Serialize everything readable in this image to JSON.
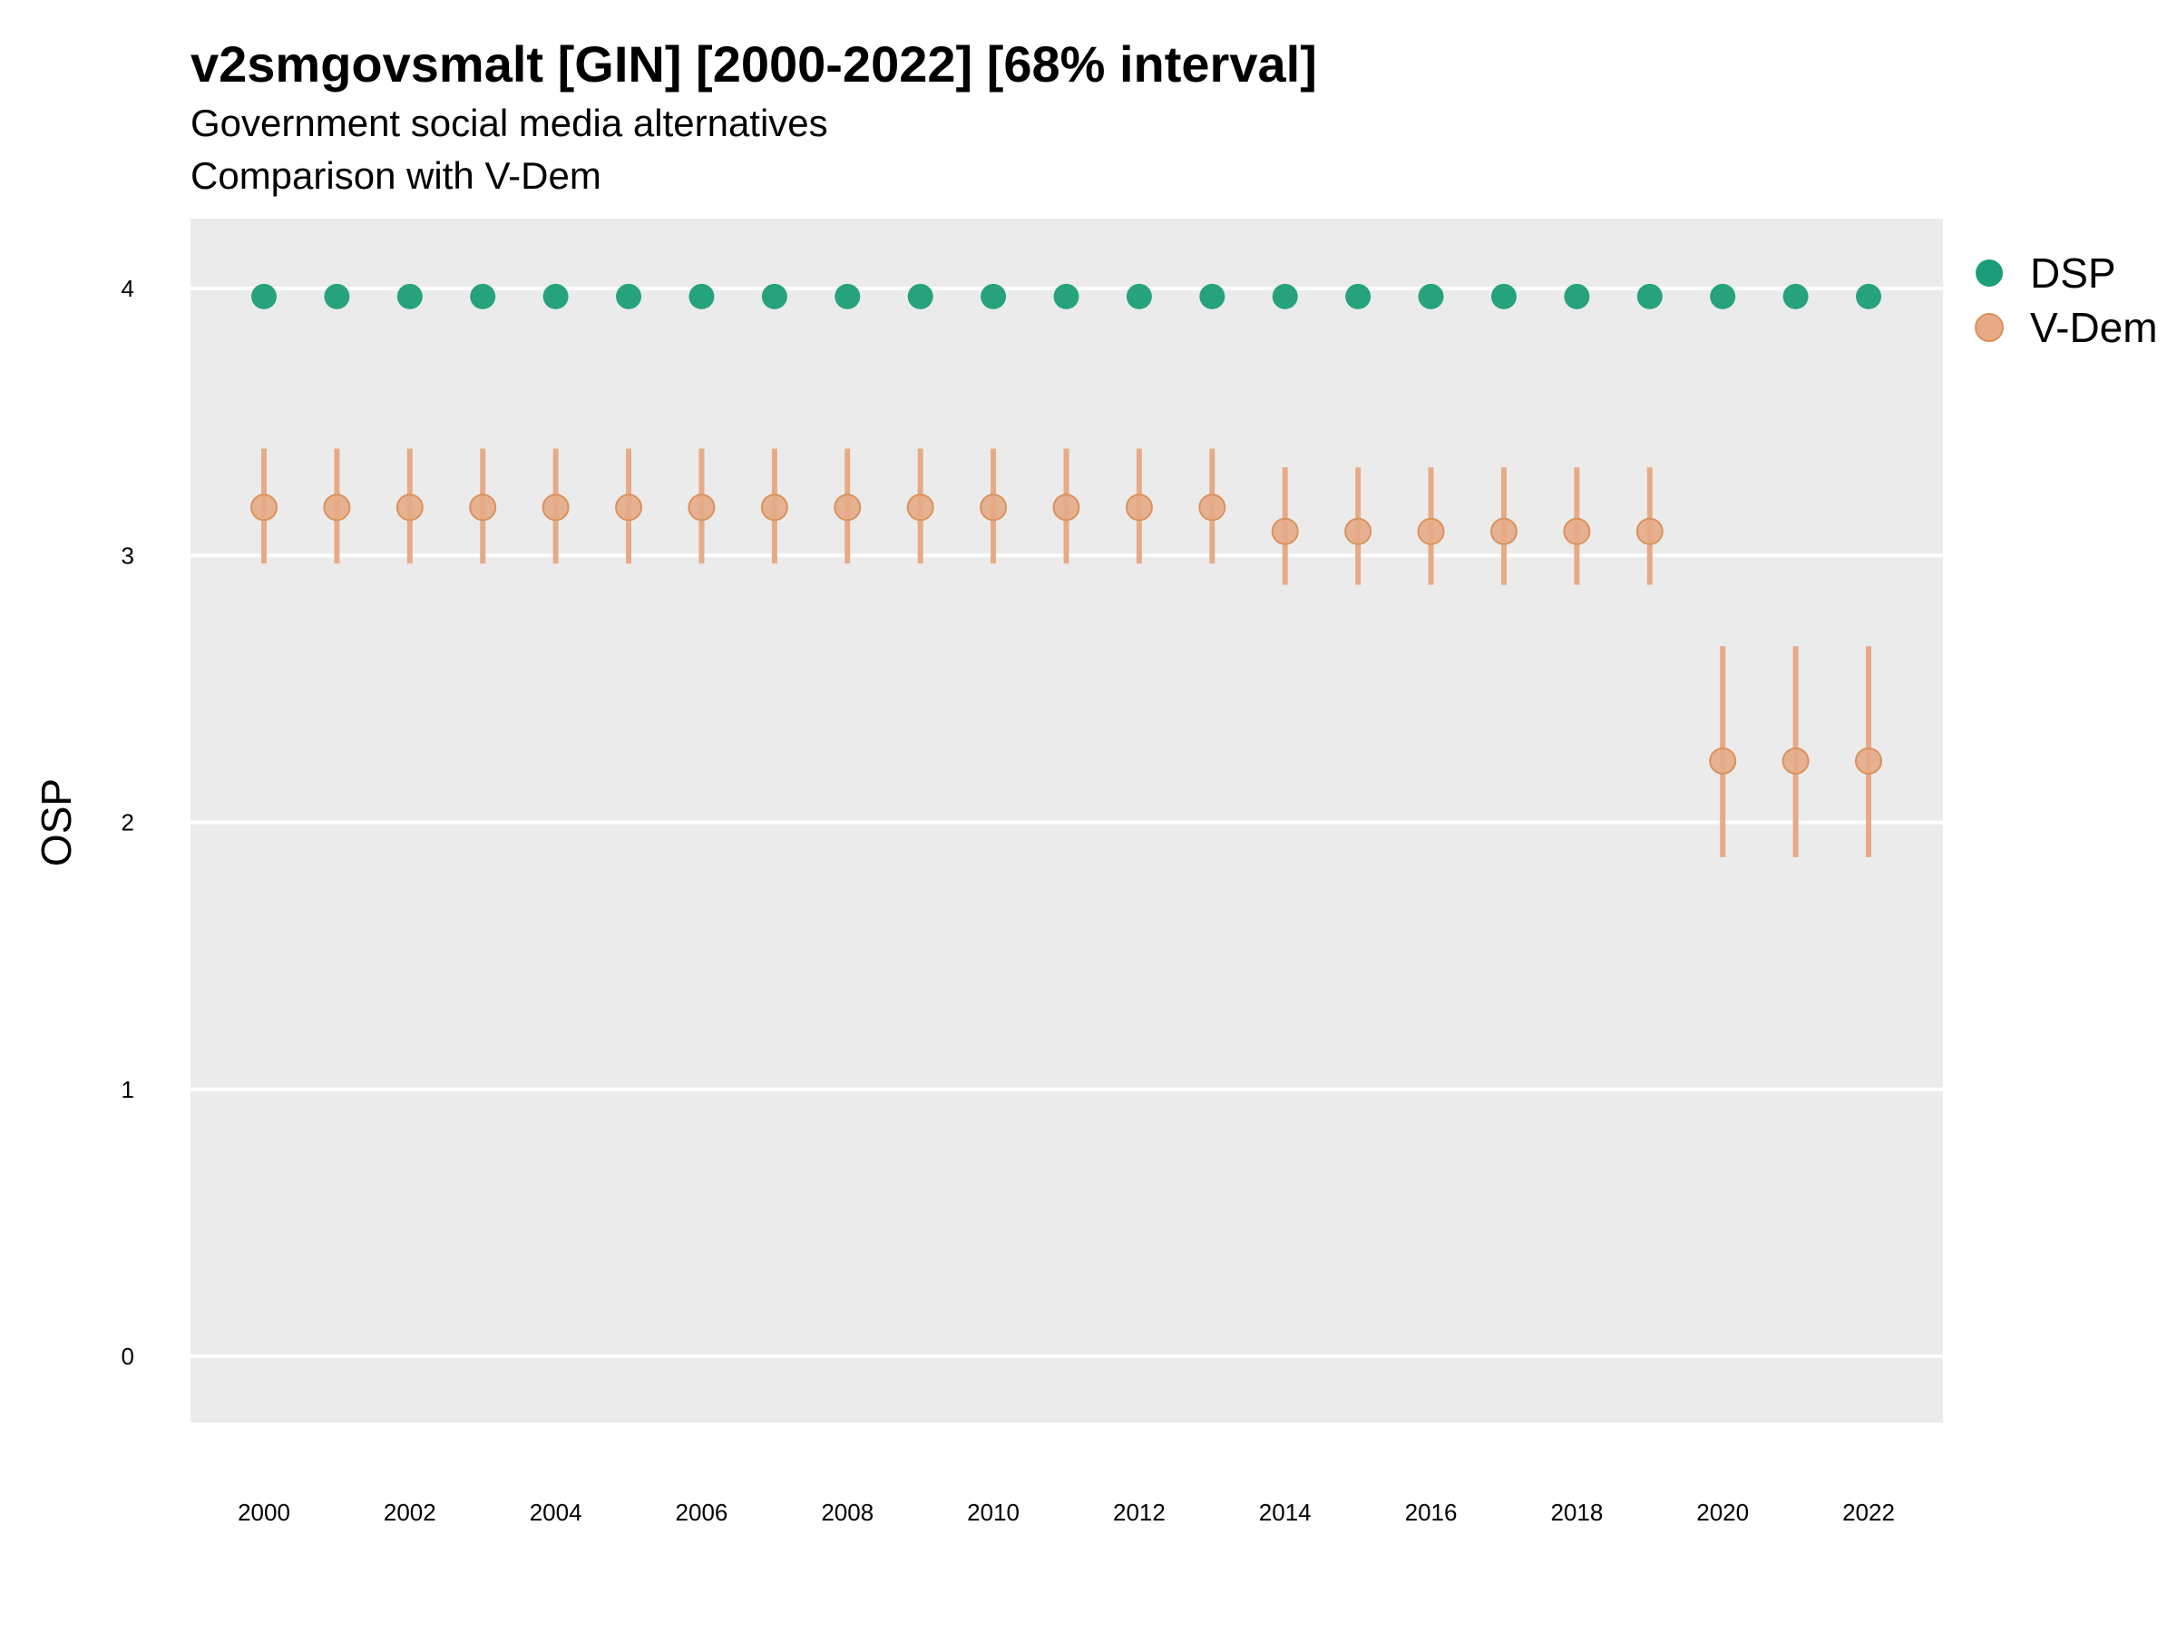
{
  "title": "v2smgovsmalt [GIN] [2000-2022] [68% interval]",
  "subtitle_line1": "Government social media alternatives",
  "subtitle_line2": "Comparison with V-Dem",
  "colors": {
    "panel_background": "#EBEBEB",
    "grid": "#FFFFFF",
    "DSP": "#1B9E77",
    "V-Dem": "#E6AB86",
    "V-Dem_dark": "#D9935E"
  },
  "chart_data": {
    "type": "scatter",
    "title": "v2smgovsmalt [GIN] [2000-2022] [68% interval]",
    "ylabel": "OSP",
    "xlabel": "",
    "ylim": [
      -0.25,
      4.25
    ],
    "xlim": [
      1999.0,
      2023.0
    ],
    "yticks": [
      0,
      1,
      2,
      3,
      4
    ],
    "xticks": [
      2000,
      2002,
      2004,
      2006,
      2008,
      2010,
      2012,
      2014,
      2016,
      2018,
      2020,
      2022
    ],
    "grid": true,
    "legend_position": "right",
    "series": [
      {
        "name": "DSP",
        "x": [
          2000,
          2001,
          2002,
          2003,
          2004,
          2005,
          2006,
          2007,
          2008,
          2009,
          2010,
          2011,
          2012,
          2013,
          2014,
          2015,
          2016,
          2017,
          2018,
          2019,
          2020,
          2021,
          2022
        ],
        "y": [
          3.97,
          3.97,
          3.97,
          3.97,
          3.97,
          3.97,
          3.97,
          3.97,
          3.97,
          3.97,
          3.97,
          3.97,
          3.97,
          3.97,
          3.97,
          3.97,
          3.97,
          3.97,
          3.97,
          3.97,
          3.97,
          3.97,
          3.97
        ]
      },
      {
        "name": "V-Dem",
        "x": [
          2000,
          2001,
          2002,
          2003,
          2004,
          2005,
          2006,
          2007,
          2008,
          2009,
          2010,
          2011,
          2012,
          2013,
          2014,
          2015,
          2016,
          2017,
          2018,
          2019,
          2020,
          2021,
          2022
        ],
        "y": [
          3.18,
          3.18,
          3.18,
          3.18,
          3.18,
          3.18,
          3.18,
          3.18,
          3.18,
          3.18,
          3.18,
          3.18,
          3.18,
          3.18,
          3.09,
          3.09,
          3.09,
          3.09,
          3.09,
          3.09,
          2.23,
          2.23,
          2.23
        ],
        "lower": [
          2.97,
          2.97,
          2.97,
          2.97,
          2.97,
          2.97,
          2.97,
          2.97,
          2.97,
          2.97,
          2.97,
          2.97,
          2.97,
          2.97,
          2.89,
          2.89,
          2.89,
          2.89,
          2.89,
          2.89,
          1.87,
          1.87,
          1.87
        ],
        "upper": [
          3.4,
          3.4,
          3.4,
          3.4,
          3.4,
          3.4,
          3.4,
          3.4,
          3.4,
          3.4,
          3.4,
          3.4,
          3.4,
          3.4,
          3.33,
          3.33,
          3.33,
          3.33,
          3.33,
          3.33,
          2.66,
          2.66,
          2.66
        ]
      }
    ],
    "legend": [
      "DSP",
      "V-Dem"
    ]
  }
}
